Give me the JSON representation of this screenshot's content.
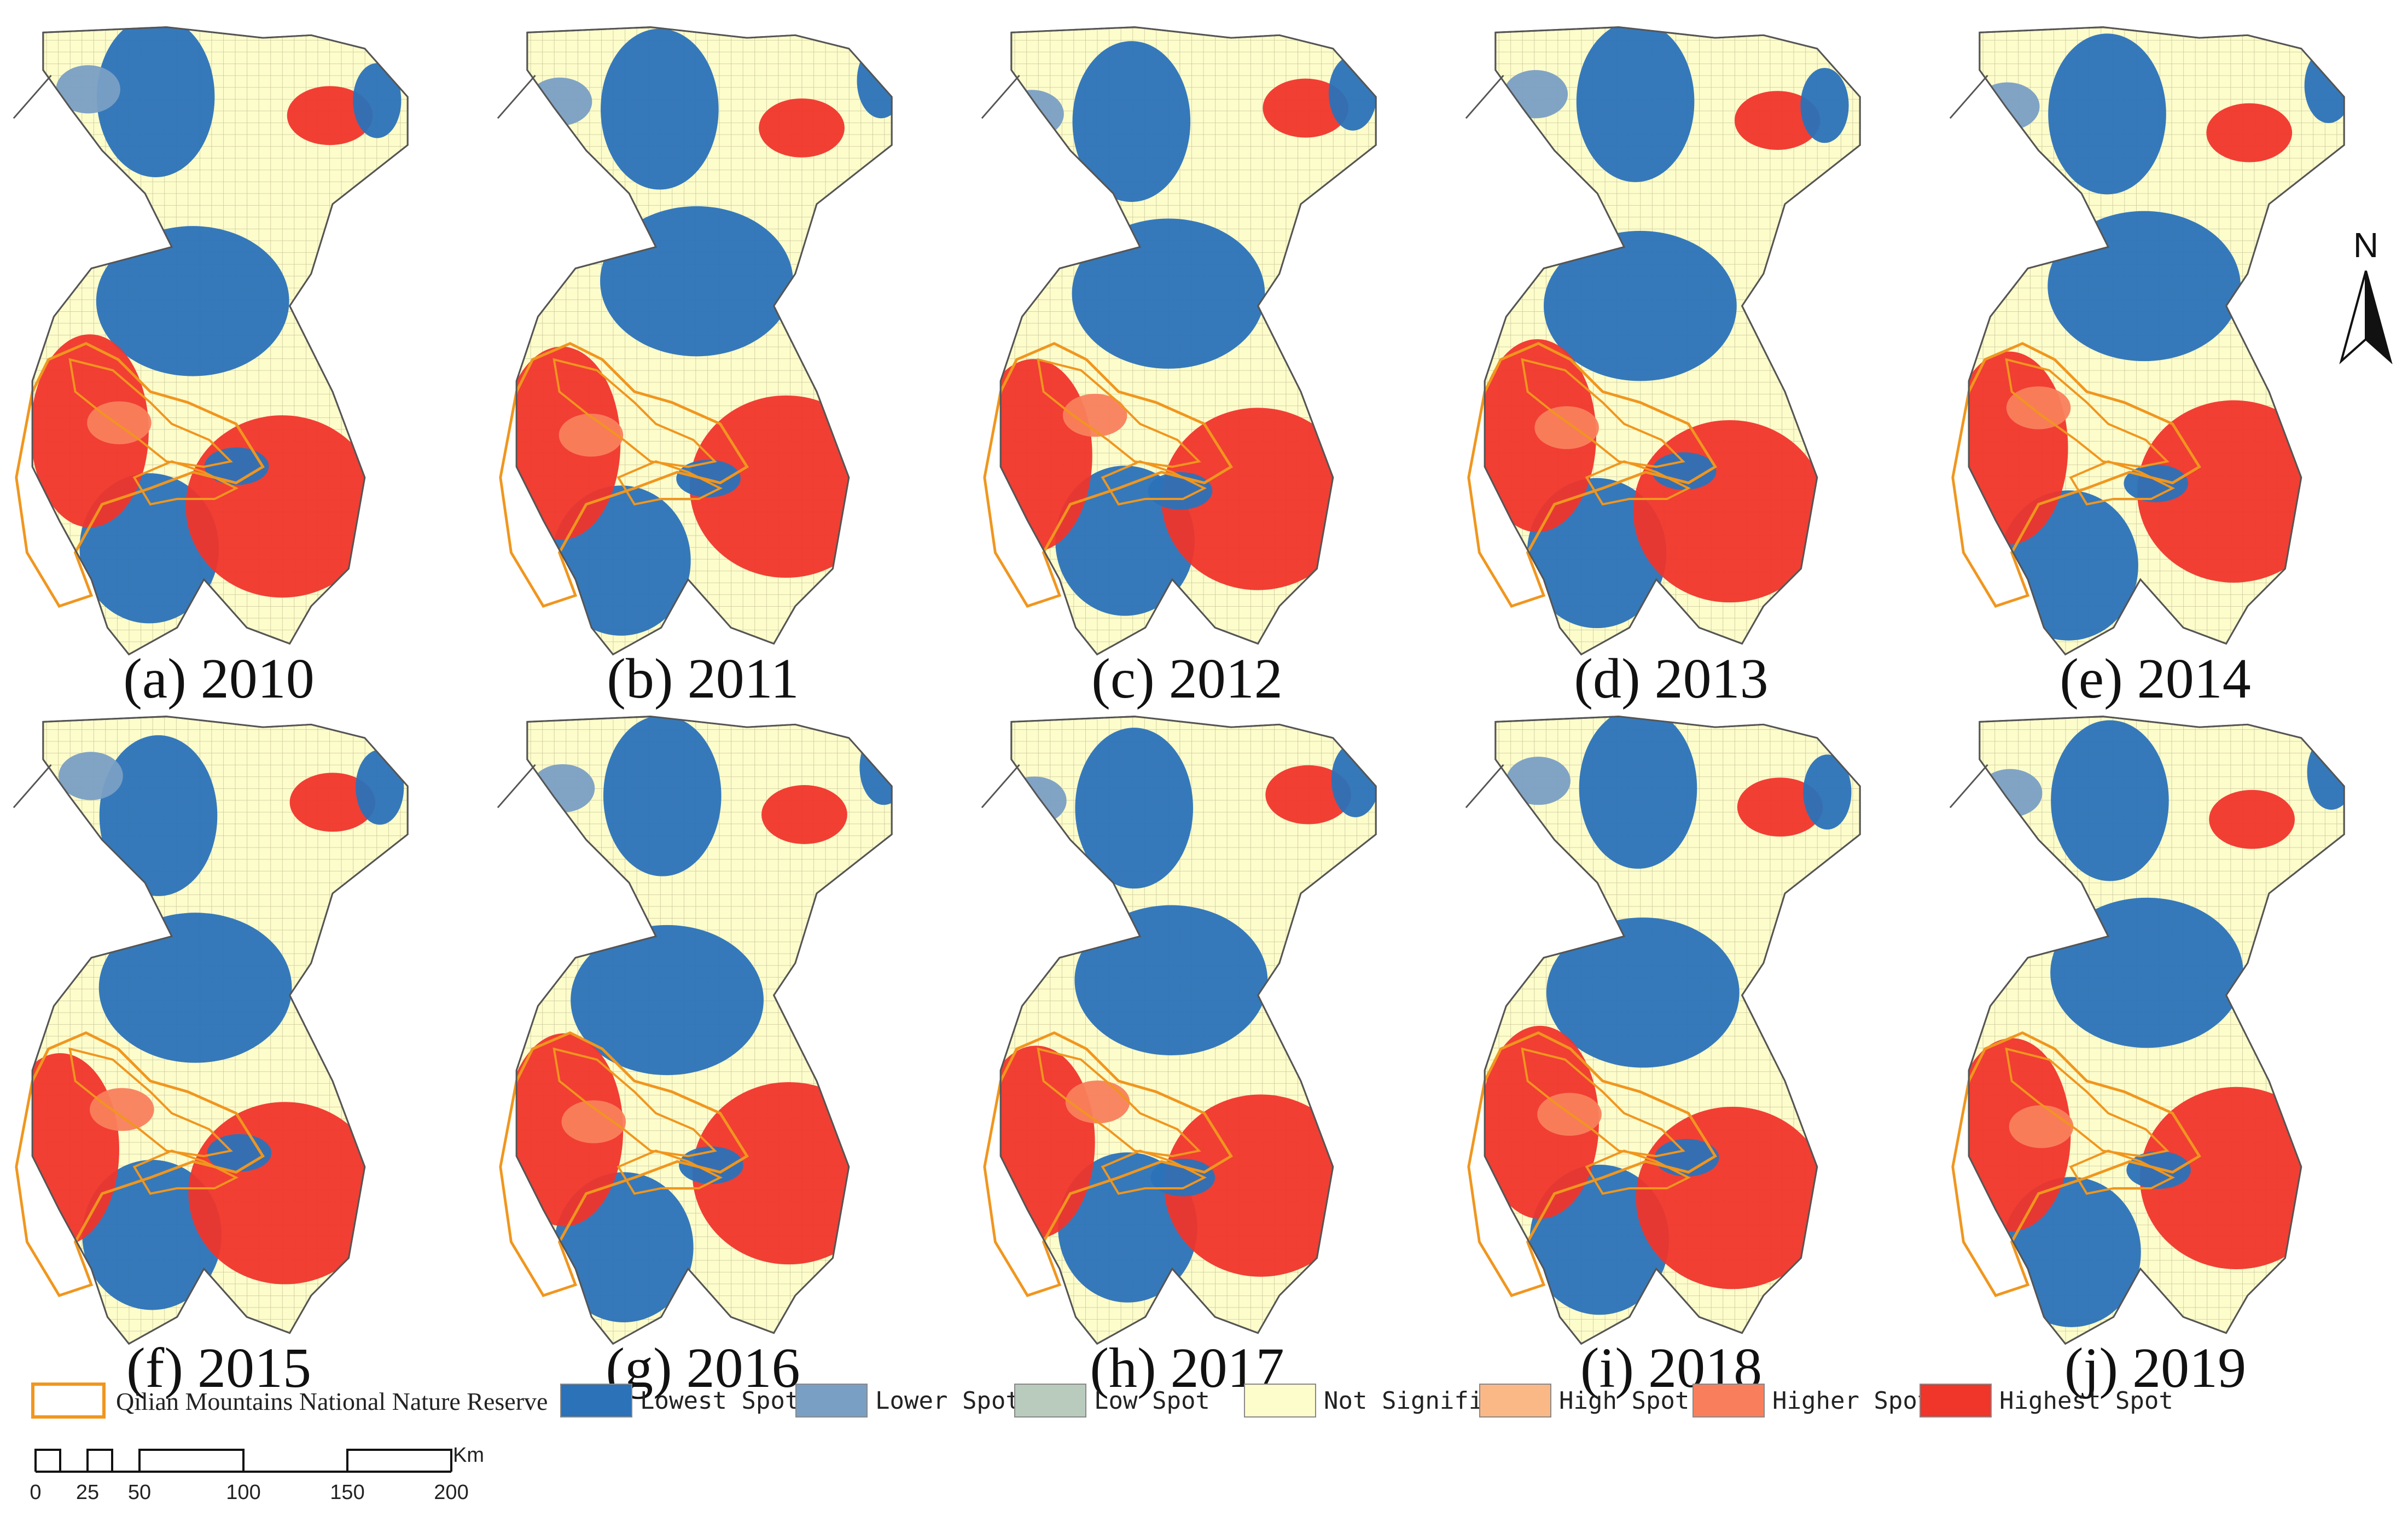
{
  "figure": {
    "panels": [
      {
        "id": "a",
        "caption": "(a) 2010"
      },
      {
        "id": "b",
        "caption": "(b) 2011"
      },
      {
        "id": "c",
        "caption": "(c) 2012"
      },
      {
        "id": "d",
        "caption": "(d) 2013"
      },
      {
        "id": "e",
        "caption": "(e) 2014"
      },
      {
        "id": "f",
        "caption": "(f) 2015"
      },
      {
        "id": "g",
        "caption": "(g) 2016"
      },
      {
        "id": "h",
        "caption": "(h) 2017"
      },
      {
        "id": "i",
        "caption": "(i) 2018"
      },
      {
        "id": "j",
        "caption": "(j) 2019"
      }
    ]
  },
  "legend": {
    "reserve": {
      "label": "Qilian Mountains National Nature Reserve",
      "color": "#f0961e"
    },
    "classes": [
      {
        "label": "Lowest Spot",
        "color": "#2b72b8"
      },
      {
        "label": "Lower Spot",
        "color": "#7a9fc4"
      },
      {
        "label": "Low Spot",
        "color": "#b9cbbd"
      },
      {
        "label": "Not Significant",
        "color": "#fdfccb"
      },
      {
        "label": "High Spot",
        "color": "#fbb887"
      },
      {
        "label": "Higher Spot",
        "color": "#f97f5c"
      },
      {
        "label": "Highest Spot",
        "color": "#f0352b"
      }
    ]
  },
  "north_arrow": {
    "label": "N"
  },
  "scale_bar": {
    "unit": "Km",
    "ticks": [
      "0",
      "25",
      "50",
      "100",
      "150",
      "200"
    ]
  },
  "colors": {
    "boundary": "#555555",
    "grid": "#c9c79c"
  }
}
